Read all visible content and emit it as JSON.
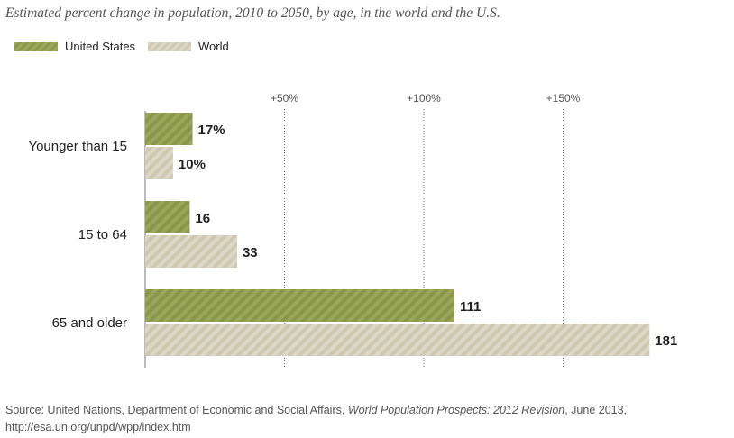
{
  "title": "Estimated percent change in population, 2010 to 2050, by age, in the world and the U.S.",
  "legend": [
    {
      "name": "United States",
      "icon": "hatched-green-swatch"
    },
    {
      "name": "World",
      "icon": "hatched-beige-swatch"
    }
  ],
  "source": {
    "prefix": "Source: United Nations, Department of Economic and Social Affairs, ",
    "italic": "World Population Prospects: 2012 Revision",
    "suffix": ", June 2013,",
    "url": "http://esa.un.org/unpd/wpp/index.htm"
  },
  "chart_data": {
    "type": "bar",
    "orientation": "horizontal",
    "title": "Estimated percent change in population, 2010 to 2050, by age, in the world and the U.S.",
    "categories": [
      "Younger than 15",
      "15 to 64",
      "65 and older"
    ],
    "series": [
      {
        "name": "United States",
        "values": [
          17,
          16,
          111
        ],
        "labels": [
          "17%",
          "16",
          "111"
        ],
        "color": "#95a152"
      },
      {
        "name": "World",
        "values": [
          10,
          33,
          181
        ],
        "labels": [
          "10%",
          "33",
          "181"
        ],
        "color": "#d8d3be"
      }
    ],
    "xlim": [
      0,
      181
    ],
    "ticks": [
      50,
      100,
      150
    ],
    "tick_labels": [
      "+50%",
      "+100%",
      "+150%"
    ],
    "grid": "vertical-dotted",
    "legend_position": "top-left"
  }
}
